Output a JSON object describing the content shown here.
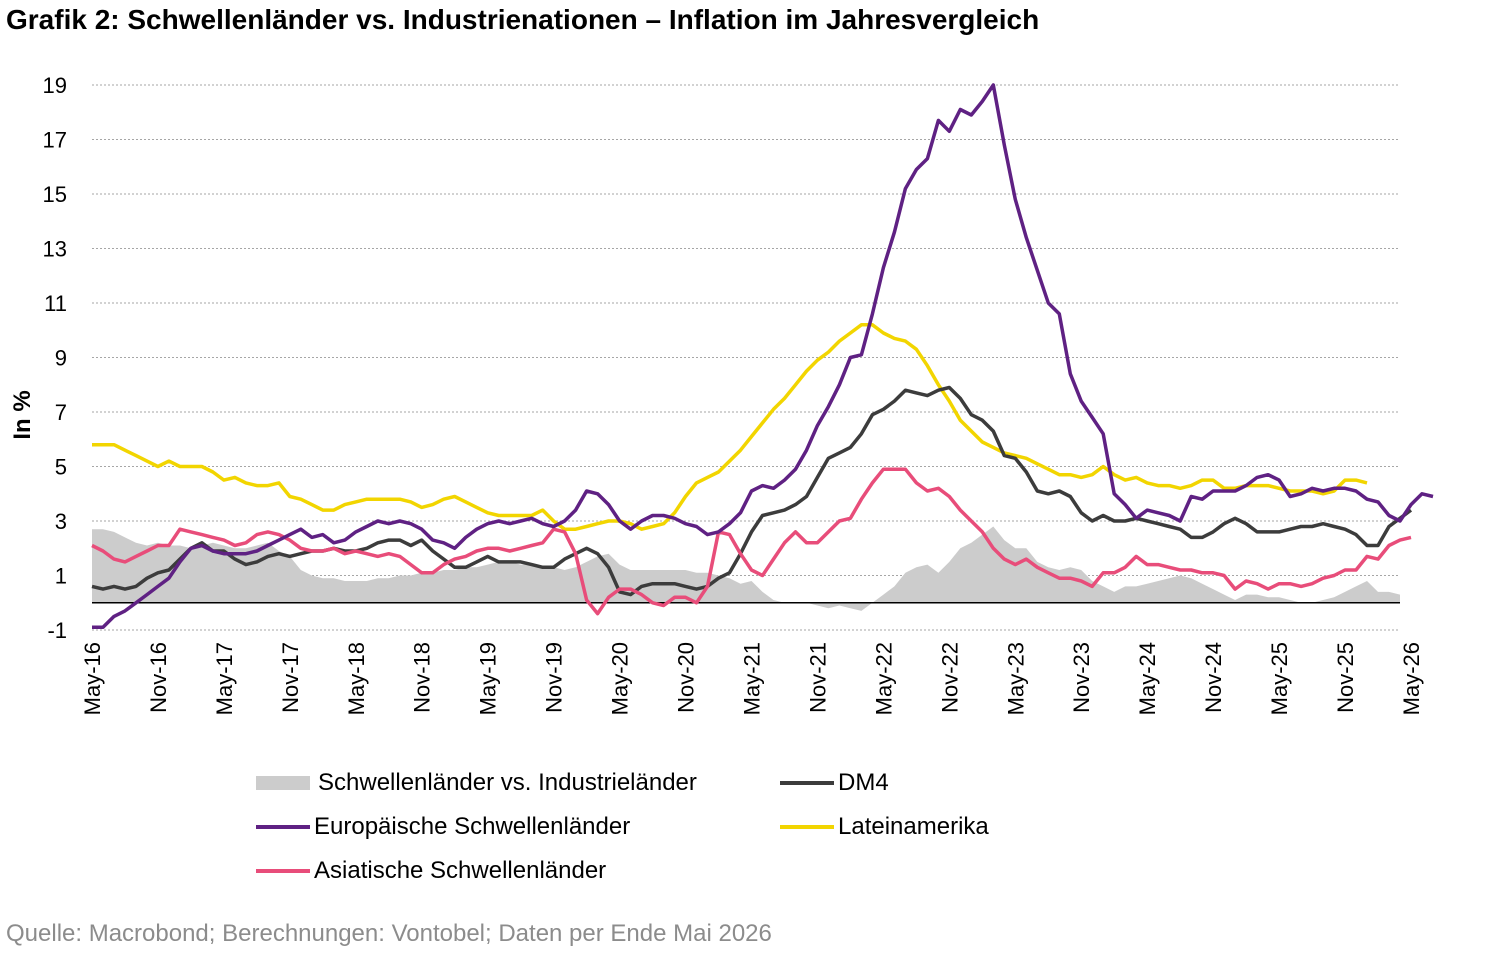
{
  "title": "Grafik 2: Schwellenländer vs. Industrienationen – Inflation im Jahresvergleich",
  "source": "Quelle: Macrobond; Berechnungen: Vontobel; Daten per Ende Mai 2026",
  "chart_data": {
    "type": "line",
    "ylabel": "In %",
    "xlabel": "",
    "ylim": [
      -1,
      19
    ],
    "yticks": [
      19,
      17,
      15,
      13,
      11,
      9,
      7,
      5,
      3,
      1,
      -1
    ],
    "grid": "horizontal dotted",
    "x_tick_labels": [
      "May-16",
      "Nov-16",
      "May-17",
      "Nov-17",
      "May-18",
      "Nov-18",
      "May-19",
      "Nov-19",
      "May-20",
      "Nov-20",
      "May-21",
      "Nov-21",
      "May-22",
      "Nov-22",
      "May-23",
      "Nov-23",
      "May-24",
      "Nov-24",
      "May-25",
      "Nov-25",
      "May-26"
    ],
    "x_start": "May-16",
    "x_end": "May-26",
    "legend_position": "bottom",
    "series": [
      {
        "name": "Schwellenländer vs. Industrieländer",
        "kind": "area",
        "color": "#cccccc",
        "values": [
          2.7,
          2.7,
          2.6,
          2.4,
          2.2,
          2.1,
          2.2,
          2.1,
          2.1,
          2.0,
          2.1,
          2.2,
          2.1,
          2.0,
          2.0,
          2.1,
          2.2,
          1.9,
          1.7,
          1.2,
          1.0,
          0.9,
          0.9,
          0.8,
          0.8,
          0.8,
          0.9,
          0.9,
          1.0,
          1.0,
          1.1,
          1.1,
          1.2,
          1.2,
          1.3,
          1.3,
          1.4,
          1.5,
          1.5,
          1.4,
          1.4,
          1.3,
          1.3,
          1.2,
          1.3,
          1.5,
          1.7,
          1.8,
          1.4,
          1.2,
          1.2,
          1.2,
          1.2,
          1.2,
          1.2,
          1.1,
          1.1,
          1.0,
          0.9,
          0.7,
          0.8,
          0.4,
          0.1,
          0.0,
          0.0,
          0.0,
          -0.1,
          -0.2,
          -0.1,
          -0.2,
          -0.3,
          0.0,
          0.3,
          0.6,
          1.1,
          1.3,
          1.4,
          1.1,
          1.5,
          2.0,
          2.2,
          2.5,
          2.8,
          2.3,
          2.0,
          2.0,
          1.5,
          1.3,
          1.2,
          1.3,
          1.2,
          0.8,
          0.6,
          0.4,
          0.6,
          0.6,
          0.7,
          0.8,
          0.9,
          1.0,
          0.9,
          0.7,
          0.5,
          0.3,
          0.1,
          0.3,
          0.3,
          0.2,
          0.2,
          0.1,
          0.0,
          0.0,
          0.1,
          0.2,
          0.4,
          0.6,
          0.8,
          0.4,
          0.4,
          0.3
        ]
      },
      {
        "name": "DM4",
        "kind": "line",
        "color": "#3c3c3c",
        "values": [
          0.6,
          0.5,
          0.6,
          0.5,
          0.6,
          0.9,
          1.1,
          1.2,
          1.6,
          2.0,
          2.2,
          1.9,
          1.9,
          1.6,
          1.4,
          1.5,
          1.7,
          1.8,
          1.7,
          1.8,
          1.9,
          1.9,
          2.0,
          1.9,
          1.9,
          2.0,
          2.2,
          2.3,
          2.3,
          2.1,
          2.3,
          1.9,
          1.6,
          1.3,
          1.3,
          1.5,
          1.7,
          1.5,
          1.5,
          1.5,
          1.4,
          1.3,
          1.3,
          1.6,
          1.8,
          2.0,
          1.8,
          1.3,
          0.4,
          0.3,
          0.6,
          0.7,
          0.7,
          0.7,
          0.6,
          0.5,
          0.6,
          0.9,
          1.1,
          1.8,
          2.6,
          3.2,
          3.3,
          3.4,
          3.6,
          3.9,
          4.6,
          5.3,
          5.5,
          5.7,
          6.2,
          6.9,
          7.1,
          7.4,
          7.8,
          7.7,
          7.6,
          7.8,
          7.9,
          7.5,
          6.9,
          6.7,
          6.3,
          5.4,
          5.3,
          4.8,
          4.1,
          4.0,
          4.1,
          3.9,
          3.3,
          3.0,
          3.2,
          3.0,
          3.0,
          3.1,
          3.0,
          2.9,
          2.8,
          2.7,
          2.4,
          2.4,
          2.6,
          2.9,
          3.1,
          2.9,
          2.6,
          2.6,
          2.6,
          2.7,
          2.8,
          2.8,
          2.9,
          2.8,
          2.7,
          2.5,
          2.1,
          2.1,
          2.8,
          3.1,
          3.4
        ]
      },
      {
        "name": "Europäische Schwellenländer",
        "kind": "line",
        "color": "#5f2183",
        "values": [
          -0.9,
          -0.9,
          -0.5,
          -0.3,
          0.0,
          0.3,
          0.6,
          0.9,
          1.5,
          2.0,
          2.1,
          1.9,
          1.8,
          1.8,
          1.8,
          1.9,
          2.1,
          2.3,
          2.5,
          2.7,
          2.4,
          2.5,
          2.2,
          2.3,
          2.6,
          2.8,
          3.0,
          2.9,
          3.0,
          2.9,
          2.7,
          2.3,
          2.2,
          2.0,
          2.4,
          2.7,
          2.9,
          3.0,
          2.9,
          3.0,
          3.1,
          2.9,
          2.8,
          3.0,
          3.4,
          4.1,
          4.0,
          3.6,
          3.0,
          2.7,
          3.0,
          3.2,
          3.2,
          3.1,
          2.9,
          2.8,
          2.5,
          2.6,
          2.9,
          3.3,
          4.1,
          4.3,
          4.2,
          4.5,
          4.9,
          5.6,
          6.5,
          7.2,
          8.0,
          9.0,
          9.1,
          10.6,
          12.3,
          13.6,
          15.2,
          15.9,
          16.3,
          17.7,
          17.3,
          18.1,
          17.9,
          18.4,
          19.0,
          16.8,
          14.8,
          13.4,
          12.2,
          11.0,
          10.6,
          8.4,
          7.4,
          6.8,
          6.2,
          4.0,
          3.6,
          3.1,
          3.4,
          3.3,
          3.2,
          3.0,
          3.9,
          3.8,
          4.1,
          4.1,
          4.1,
          4.3,
          4.6,
          4.7,
          4.5,
          3.9,
          4.0,
          4.2,
          4.1,
          4.2,
          4.2,
          4.1,
          3.8,
          3.7,
          3.2,
          3.0,
          3.6,
          4.0,
          3.9
        ]
      },
      {
        "name": "Lateinamerika",
        "kind": "line",
        "color": "#f2d500",
        "values": [
          5.8,
          5.8,
          5.8,
          5.6,
          5.4,
          5.2,
          5.0,
          5.2,
          5.0,
          5.0,
          5.0,
          4.8,
          4.5,
          4.6,
          4.4,
          4.3,
          4.3,
          4.4,
          3.9,
          3.8,
          3.6,
          3.4,
          3.4,
          3.6,
          3.7,
          3.8,
          3.8,
          3.8,
          3.8,
          3.7,
          3.5,
          3.6,
          3.8,
          3.9,
          3.7,
          3.5,
          3.3,
          3.2,
          3.2,
          3.2,
          3.2,
          3.4,
          3.0,
          2.7,
          2.7,
          2.8,
          2.9,
          3.0,
          3.0,
          2.9,
          2.7,
          2.8,
          2.9,
          3.3,
          3.9,
          4.4,
          4.6,
          4.8,
          5.2,
          5.6,
          6.1,
          6.6,
          7.1,
          7.5,
          8.0,
          8.5,
          8.9,
          9.2,
          9.6,
          9.9,
          10.2,
          10.2,
          9.9,
          9.7,
          9.6,
          9.3,
          8.7,
          8.0,
          7.4,
          6.7,
          6.3,
          5.9,
          5.7,
          5.5,
          5.4,
          5.3,
          5.1,
          4.9,
          4.7,
          4.7,
          4.6,
          4.7,
          5.0,
          4.7,
          4.5,
          4.6,
          4.4,
          4.3,
          4.3,
          4.2,
          4.3,
          4.5,
          4.5,
          4.2,
          4.2,
          4.3,
          4.3,
          4.3,
          4.2,
          4.1,
          4.1,
          4.1,
          4.0,
          4.1,
          4.5,
          4.5,
          4.4
        ]
      },
      {
        "name": "Asiatische Schwellenländer",
        "kind": "line",
        "color": "#e84d7a",
        "values": [
          2.1,
          1.9,
          1.6,
          1.5,
          1.7,
          1.9,
          2.1,
          2.1,
          2.7,
          2.6,
          2.5,
          2.4,
          2.3,
          2.1,
          2.2,
          2.5,
          2.6,
          2.5,
          2.3,
          2.0,
          1.9,
          1.9,
          2.0,
          1.8,
          1.9,
          1.8,
          1.7,
          1.8,
          1.7,
          1.4,
          1.1,
          1.1,
          1.4,
          1.6,
          1.7,
          1.9,
          2.0,
          2.0,
          1.9,
          2.0,
          2.1,
          2.2,
          2.7,
          2.6,
          1.8,
          0.1,
          -0.4,
          0.2,
          0.5,
          0.5,
          0.3,
          0.0,
          -0.1,
          0.2,
          0.2,
          0.0,
          0.6,
          2.6,
          2.5,
          1.8,
          1.2,
          1.0,
          1.6,
          2.2,
          2.6,
          2.2,
          2.2,
          2.6,
          3.0,
          3.1,
          3.8,
          4.4,
          4.9,
          4.9,
          4.9,
          4.4,
          4.1,
          4.2,
          3.9,
          3.4,
          3.0,
          2.6,
          2.0,
          1.6,
          1.4,
          1.6,
          1.3,
          1.1,
          0.9,
          0.9,
          0.8,
          0.6,
          1.1,
          1.1,
          1.3,
          1.7,
          1.4,
          1.4,
          1.3,
          1.2,
          1.2,
          1.1,
          1.1,
          1.0,
          0.5,
          0.8,
          0.7,
          0.5,
          0.7,
          0.7,
          0.6,
          0.7,
          0.9,
          1.0,
          1.2,
          1.2,
          1.7,
          1.6,
          2.1,
          2.3,
          2.4
        ]
      }
    ]
  },
  "legend": [
    {
      "label": "Schwellenländer vs. Industrieländer",
      "kind": "area",
      "color": "#cccccc"
    },
    {
      "label": "DM4",
      "kind": "line",
      "color": "#3c3c3c"
    },
    {
      "label": "Europäische Schwellenländer",
      "kind": "line",
      "color": "#5f2183"
    },
    {
      "label": "Lateinamerika",
      "kind": "line",
      "color": "#f2d500"
    },
    {
      "label": "Asiatische Schwellenländer",
      "kind": "line",
      "color": "#e84d7a"
    }
  ]
}
